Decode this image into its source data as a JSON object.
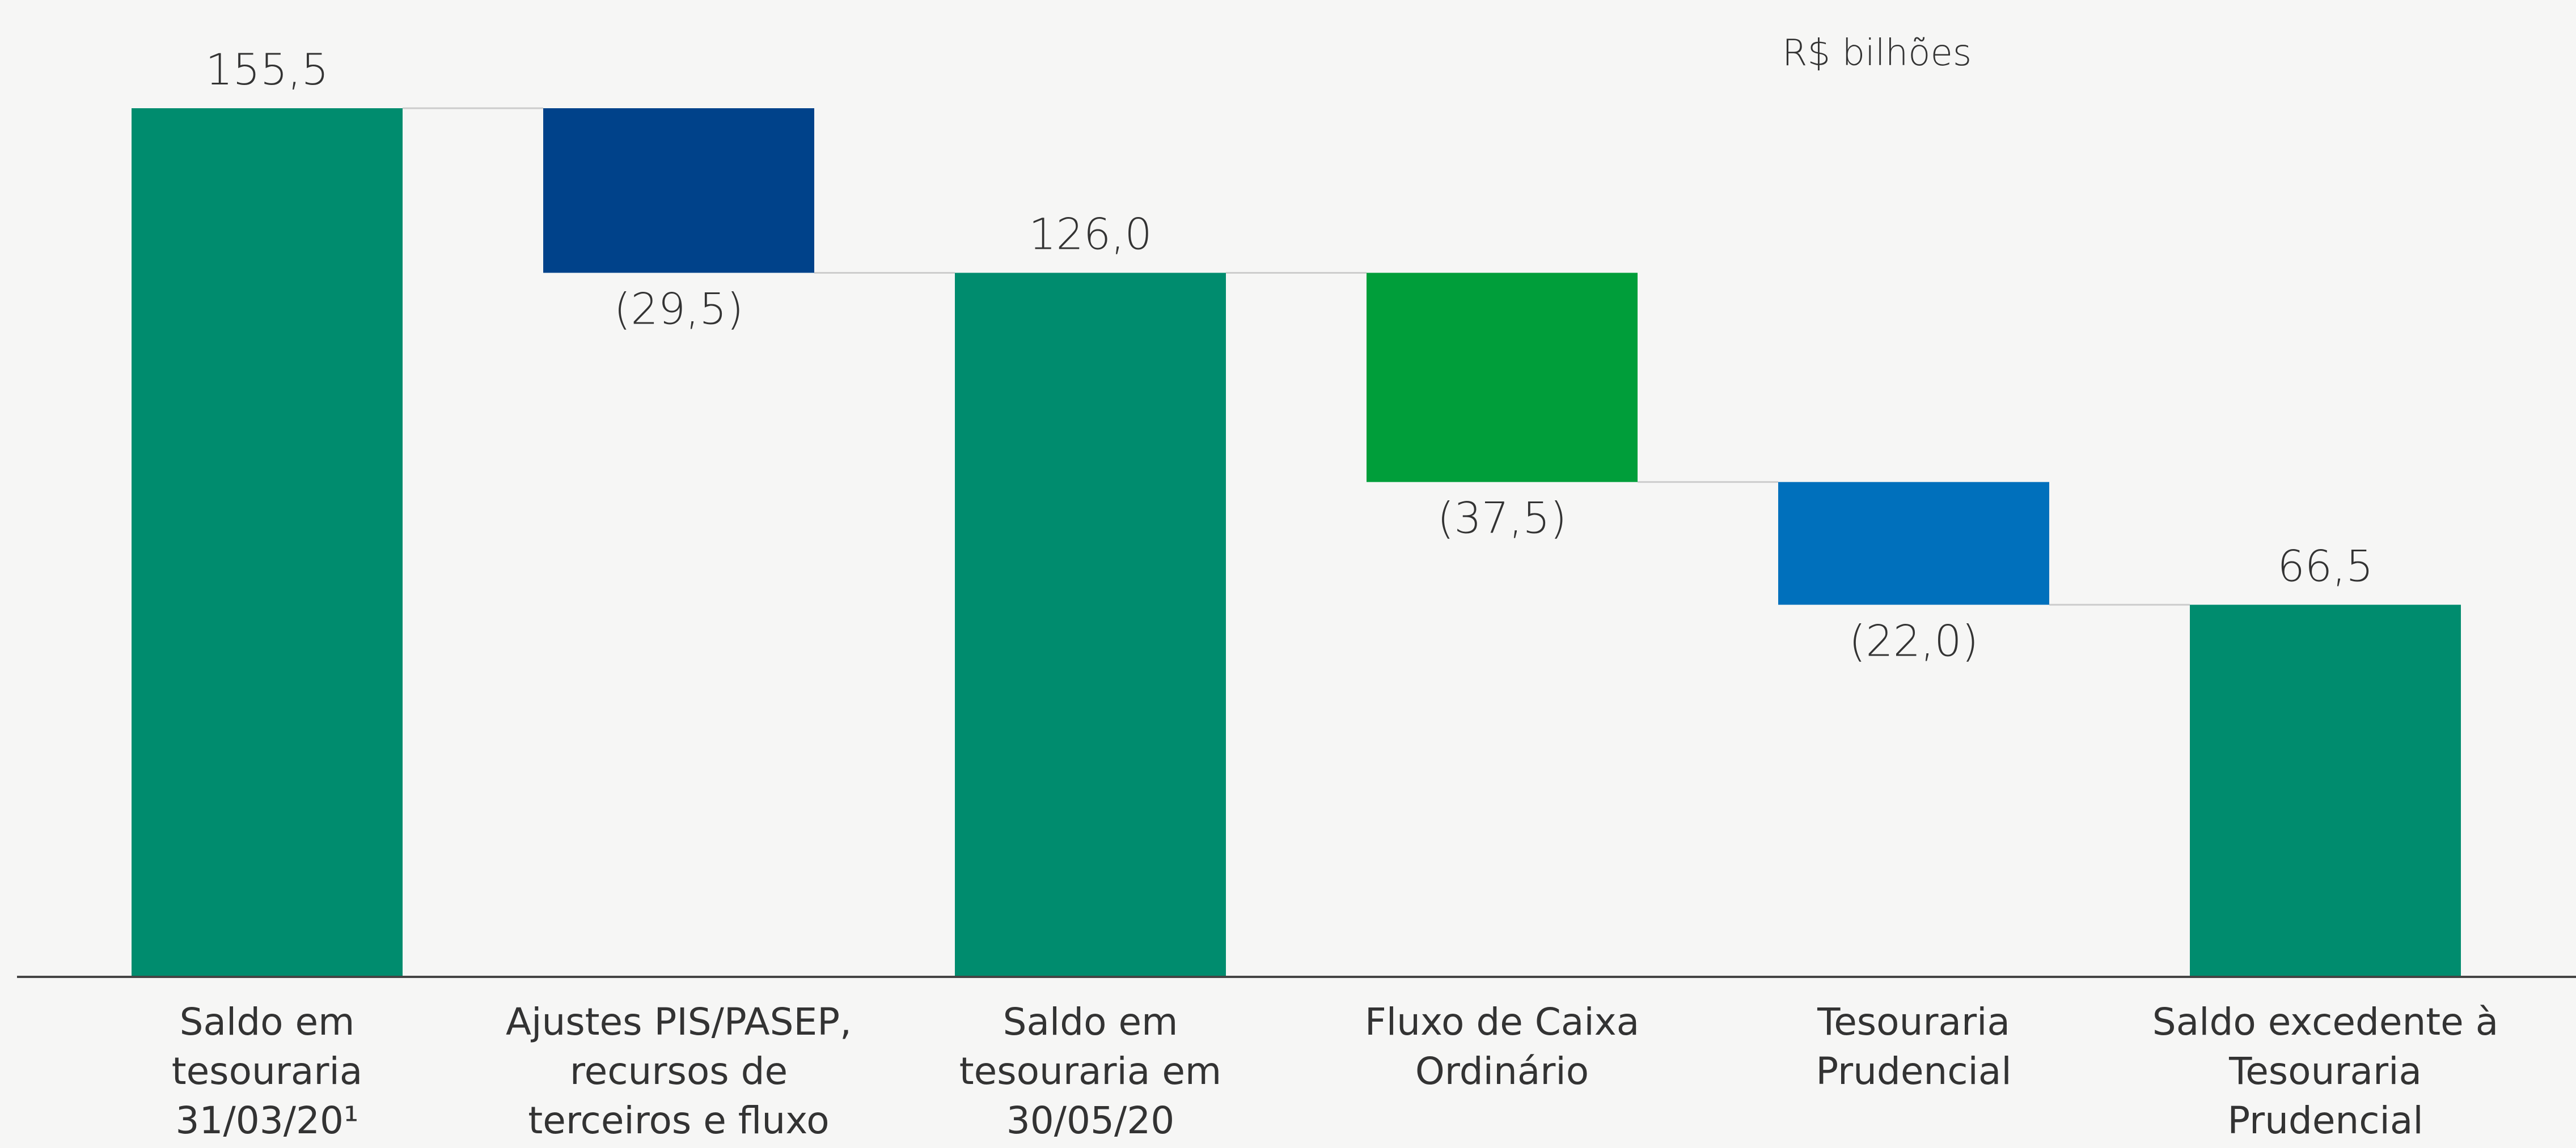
{
  "chart_data": {
    "type": "waterfall",
    "unit_label": "R$ bilhões",
    "categories": [
      "Saldo em tesouraria 31/03/20¹",
      "Ajustes PIS/PASEP, recursos de terceiros e fluxo ordinário",
      "Saldo em tesouraria em 30/05/20",
      "Fluxo de Caixa Ordinário",
      "Tesouraria Prudencial",
      "Saldo excedente à Tesouraria Prudencial"
    ],
    "values": [
      155.5,
      -29.5,
      126.0,
      -37.5,
      -22.0,
      66.5
    ],
    "value_labels": [
      "155,5",
      "(29,5)",
      "126,0",
      "(37,5)",
      "(22,0)",
      "66,5"
    ],
    "is_total": [
      true,
      false,
      true,
      false,
      false,
      true
    ],
    "colors": [
      "#008c6e",
      "#00428a",
      "#008c6e",
      "#009e3a",
      "#0070bc",
      "#008c6e"
    ],
    "ylim": [
      0,
      155.5
    ]
  }
}
